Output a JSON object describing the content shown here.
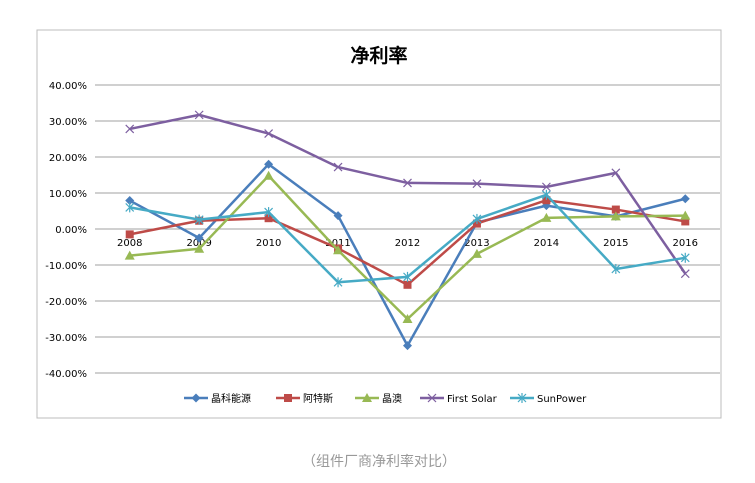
{
  "chart_data": {
    "type": "line",
    "title": "净利率",
    "caption": "（组件厂商净利率对比）",
    "xlabel": "",
    "ylabel": "",
    "categories": [
      "2008",
      "2009",
      "2010",
      "2011",
      "2012",
      "2013",
      "2014",
      "2015",
      "2016"
    ],
    "ylim": [
      -40,
      40
    ],
    "yticks": [
      40,
      30,
      20,
      10,
      0,
      -10,
      -20,
      -30,
      -40
    ],
    "ytick_labels": [
      "40.00%",
      "30.00%",
      "20.00%",
      "10.00%",
      "0.00%",
      "-10.00%",
      "-20.00%",
      "-30.00%",
      "-40.00%"
    ],
    "grid": true,
    "legend_position": "bottom",
    "series": [
      {
        "name": "晶科能源",
        "color": "#4a7ebb",
        "marker": "diamond",
        "values": [
          7.9,
          -2.5,
          18.0,
          3.7,
          -32.4,
          1.8,
          6.5,
          3.5,
          8.4
        ]
      },
      {
        "name": "阿特斯",
        "color": "#be4b48",
        "marker": "square",
        "values": [
          -1.5,
          2.3,
          3.0,
          -5.4,
          -15.5,
          1.5,
          8.0,
          5.4,
          2.1
        ]
      },
      {
        "name": "晶澳",
        "color": "#98b954",
        "marker": "triangle",
        "values": [
          -7.4,
          -5.5,
          14.8,
          -5.9,
          -25.0,
          -6.9,
          3.1,
          3.5,
          3.7
        ]
      },
      {
        "name": "First Solar",
        "color": "#7d5fa0",
        "marker": "x",
        "values": [
          27.8,
          31.7,
          26.5,
          17.2,
          12.8,
          12.6,
          11.7,
          15.6,
          -12.4
        ]
      },
      {
        "name": "SunPower",
        "color": "#46aac5",
        "marker": "star",
        "values": [
          6.0,
          2.6,
          4.7,
          -14.8,
          -13.3,
          2.8,
          9.5,
          -11.1,
          -8.0
        ]
      }
    ]
  }
}
